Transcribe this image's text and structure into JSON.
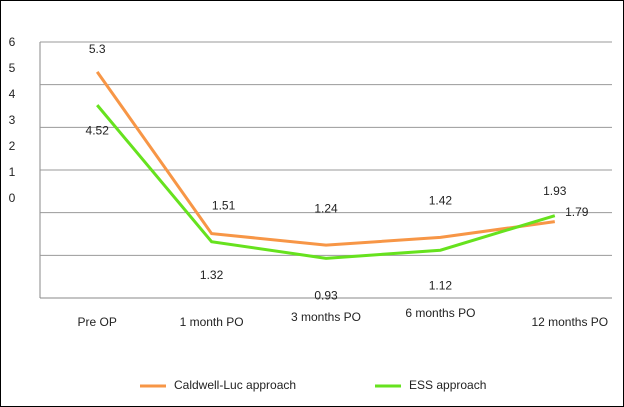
{
  "chart_data": {
    "type": "line",
    "categories": [
      "Pre OP",
      "1 month PO",
      "3 months PO",
      "6 months PO",
      "12 months PO"
    ],
    "series": [
      {
        "name": "Caldwell-Luc approach",
        "color": "#f79646",
        "values": [
          5.3,
          1.51,
          1.24,
          1.42,
          1.79
        ]
      },
      {
        "name": "ESS approach",
        "color": "#66e21e",
        "values": [
          4.52,
          1.32,
          0.93,
          1.12,
          1.93
        ]
      }
    ],
    "ylim": [
      0,
      6
    ],
    "yticks": [
      0,
      1,
      2,
      3,
      4,
      5,
      6
    ],
    "grid": true,
    "legend": "bottom"
  }
}
